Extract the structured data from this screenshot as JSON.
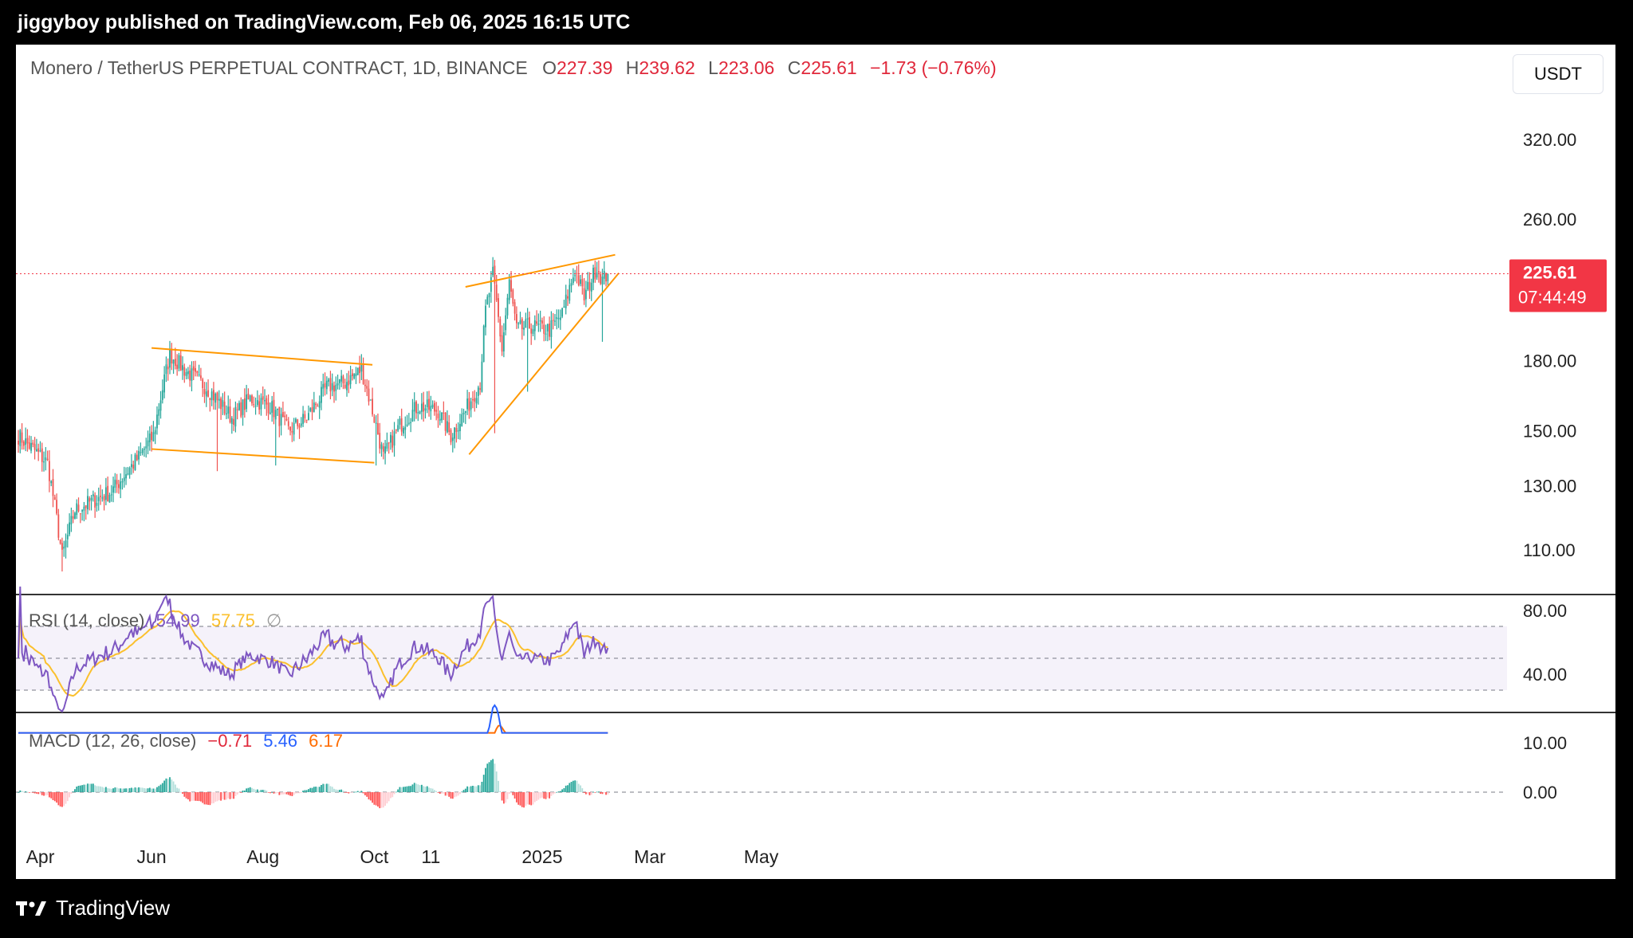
{
  "header": {
    "text": "jiggyboy published on TradingView.com, Feb 06, 2025 16:15 UTC"
  },
  "legend": {
    "symbol": "Monero / TetherUS PERPETUAL CONTRACT, 1D, BINANCE",
    "open_label": "O",
    "open": "227.39",
    "high_label": "H",
    "high": "239.62",
    "low_label": "L",
    "low": "223.06",
    "close_label": "C",
    "close": "225.61",
    "change": "−1.73 (−0.76%)"
  },
  "currency": "USDT",
  "price_label": {
    "price": "225.61",
    "countdown": "07:44:49"
  },
  "rsi_legend": {
    "name": "RSI (14, close)",
    "value": "54.99",
    "ma": "57.75",
    "symbol": "∅"
  },
  "macd_legend": {
    "name": "MACD (12, 26, close)",
    "hist": "−0.71",
    "macd": "5.46",
    "signal": "6.17"
  },
  "footer": {
    "brand": "TradingView"
  },
  "colors": {
    "up": "#26a69a",
    "down": "#ef5350",
    "trendline": "#ff9800",
    "rsi": "#7e57c2",
    "rsi_ma": "#fbc02d",
    "macd": "#2962ff",
    "signal": "#ff6d00",
    "price_badge": "#f23645"
  },
  "chart_data": [
    {
      "type": "candlestick",
      "title": "Monero / TetherUS PERPETUAL CONTRACT, 1D, BINANCE",
      "y_scale": "log",
      "ylim": [
        100,
        360
      ],
      "y_ticks": [
        "320.00",
        "260.00",
        "180.00",
        "150.00",
        "130.00",
        "110.00"
      ],
      "x_ticks": [
        "Apr",
        "Jun",
        "Aug",
        "Oct",
        "11",
        "2025",
        "Mar",
        "May"
      ],
      "last_price": 225.61,
      "price_anchors": [
        [
          "2024-03-20",
          148
        ],
        [
          "2024-04-05",
          138
        ],
        [
          "2024-04-13",
          108
        ],
        [
          "2024-04-20",
          122
        ],
        [
          "2024-05-10",
          128
        ],
        [
          "2024-05-25",
          140
        ],
        [
          "2024-06-02",
          148
        ],
        [
          "2024-06-11",
          183
        ],
        [
          "2024-06-20",
          175
        ],
        [
          "2024-07-01",
          168
        ],
        [
          "2024-07-15",
          155
        ],
        [
          "2024-07-25",
          163
        ],
        [
          "2024-08-05",
          160
        ],
        [
          "2024-08-15",
          150
        ],
        [
          "2024-08-25",
          155
        ],
        [
          "2024-09-05",
          168
        ],
        [
          "2024-09-15",
          170
        ],
        [
          "2024-09-24",
          176
        ],
        [
          "2024-10-01",
          155
        ],
        [
          "2024-10-06",
          140
        ],
        [
          "2024-10-15",
          152
        ],
        [
          "2024-10-25",
          160
        ],
        [
          "2024-11-05",
          158
        ],
        [
          "2024-11-12",
          148
        ],
        [
          "2024-11-20",
          158
        ],
        [
          "2024-11-28",
          170
        ],
        [
          "2024-12-01",
          205
        ],
        [
          "2024-12-05",
          225
        ],
        [
          "2024-12-10",
          185
        ],
        [
          "2024-12-14",
          220
        ],
        [
          "2024-12-18",
          195
        ],
        [
          "2024-12-25",
          197
        ],
        [
          "2025-01-05",
          195
        ],
        [
          "2025-01-12",
          203
        ],
        [
          "2025-01-19",
          228
        ],
        [
          "2025-01-24",
          212
        ],
        [
          "2025-01-31",
          230
        ],
        [
          "2025-02-03",
          222
        ],
        [
          "2025-02-06",
          225.61
        ]
      ],
      "trendlines": [
        {
          "name": "channel-top",
          "points": [
            [
              "2024-06-01",
              186
            ],
            [
              "2024-09-30",
              178
            ]
          ]
        },
        {
          "name": "channel-bottom",
          "points": [
            [
              "2024-06-01",
              143
            ],
            [
              "2024-10-01",
              138
            ]
          ]
        },
        {
          "name": "wedge-top",
          "points": [
            [
              "2024-11-20",
              218
            ],
            [
              "2025-02-10",
              237
            ]
          ]
        },
        {
          "name": "wedge-bottom",
          "points": [
            [
              "2024-11-22",
              141
            ],
            [
              "2025-02-12",
              226
            ]
          ]
        }
      ]
    },
    {
      "type": "line",
      "title": "RSI (14, close)",
      "ylim": [
        20,
        90
      ],
      "y_ticks": [
        "80.00",
        "40.00"
      ],
      "bands": [
        70,
        50,
        30
      ],
      "series": [
        {
          "name": "RSI",
          "last": 54.99
        },
        {
          "name": "RSI-based MA",
          "last": 57.75
        }
      ]
    },
    {
      "type": "line",
      "title": "MACD (12, 26, close)",
      "ylim": [
        -5,
        14
      ],
      "y_ticks": [
        "10.00",
        "0.00"
      ],
      "series": [
        {
          "name": "Histogram",
          "last": -0.71
        },
        {
          "name": "MACD",
          "last": 5.46
        },
        {
          "name": "Signal",
          "last": 6.17
        }
      ]
    }
  ]
}
